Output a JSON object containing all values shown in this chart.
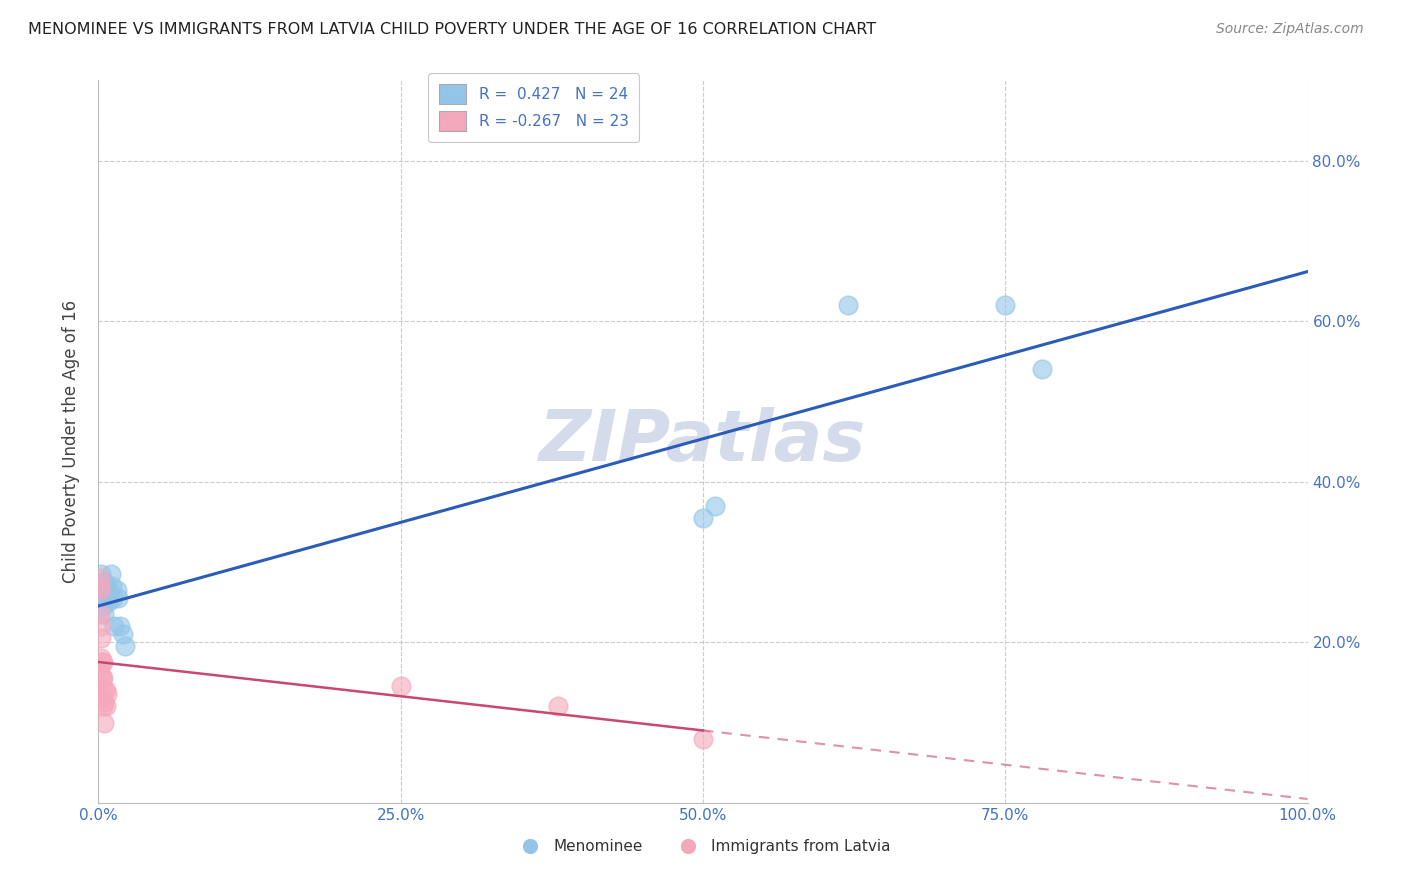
{
  "title": "MENOMINEE VS IMMIGRANTS FROM LATVIA CHILD POVERTY UNDER THE AGE OF 16 CORRELATION CHART",
  "source": "Source: ZipAtlas.com",
  "ylabel": "Child Poverty Under the Age of 16",
  "xlabel": "",
  "R_menominee": 0.427,
  "N_menominee": 24,
  "R_latvia": -0.267,
  "N_latvia": 23,
  "menominee_x": [
    0.002,
    0.003,
    0.004,
    0.004,
    0.005,
    0.005,
    0.006,
    0.007,
    0.008,
    0.009,
    0.01,
    0.011,
    0.012,
    0.013,
    0.015,
    0.016,
    0.018,
    0.02,
    0.022,
    0.5,
    0.51,
    0.62,
    0.75,
    0.78
  ],
  "menominee_y": [
    0.285,
    0.265,
    0.26,
    0.245,
    0.235,
    0.275,
    0.255,
    0.27,
    0.25,
    0.26,
    0.285,
    0.27,
    0.255,
    0.22,
    0.265,
    0.255,
    0.22,
    0.21,
    0.195,
    0.355,
    0.37,
    0.62,
    0.62,
    0.54
  ],
  "latvia_x": [
    0.001,
    0.001,
    0.001,
    0.001,
    0.002,
    0.002,
    0.002,
    0.002,
    0.003,
    0.003,
    0.003,
    0.004,
    0.004,
    0.004,
    0.005,
    0.005,
    0.005,
    0.006,
    0.006,
    0.007,
    0.25,
    0.38,
    0.5
  ],
  "latvia_y": [
    0.28,
    0.27,
    0.265,
    0.235,
    0.22,
    0.205,
    0.18,
    0.16,
    0.175,
    0.155,
    0.13,
    0.175,
    0.155,
    0.12,
    0.14,
    0.125,
    0.1,
    0.14,
    0.12,
    0.135,
    0.145,
    0.12,
    0.08
  ],
  "color_menominee": "#92c5e8",
  "color_latvia": "#f4a8bb",
  "line_color_menominee": "#2b5cb8",
  "line_color_latvia": "#c84870",
  "watermark_text": "ZIPatlas",
  "watermark_color": "#d0d8e8",
  "background_color": "#ffffff",
  "xlim": [
    0.0,
    1.0
  ],
  "ylim": [
    0.0,
    0.9
  ],
  "xticks": [
    0.0,
    0.25,
    0.5,
    0.75,
    1.0
  ],
  "yticks": [
    0.2,
    0.4,
    0.6,
    0.8
  ],
  "ytick_labels_right": [
    "20.0%",
    "40.0%",
    "60.0%",
    "80.0%"
  ],
  "xtick_labels": [
    "0.0%",
    "25.0%",
    "50.0%",
    "75.0%",
    "100.0%"
  ],
  "tick_color": "#4472c4",
  "grid_color": "#cccccc",
  "legend_R_label1": "R =  0.427   N = 24",
  "legend_R_label2": "R = -0.267   N = 23",
  "legend_bottom_label1": "Menominee",
  "legend_bottom_label2": "Immigrants from Latvia"
}
